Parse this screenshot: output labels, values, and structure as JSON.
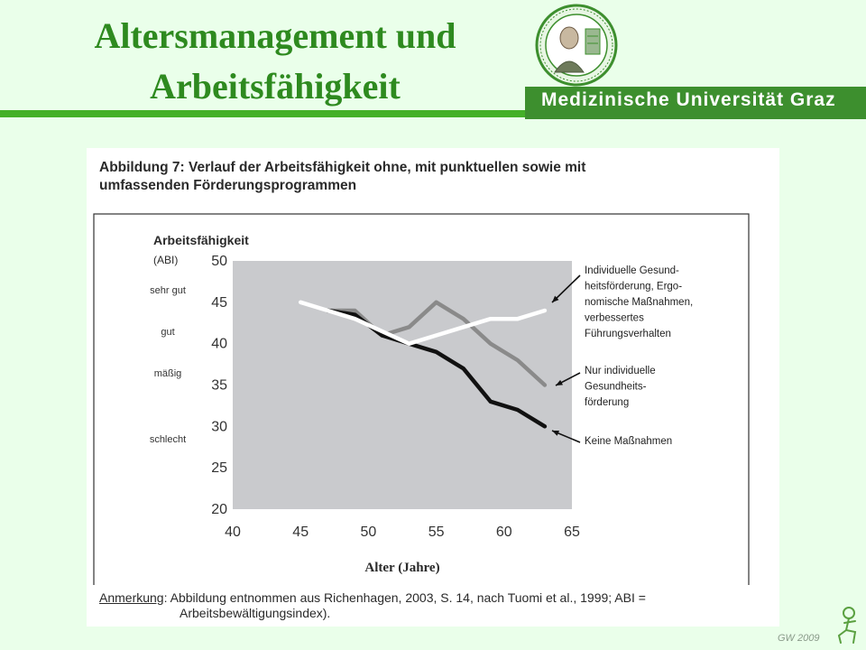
{
  "slide": {
    "title_line1": "Altersmanagement und",
    "title_line2": "Arbeitsfähigkeit",
    "university": "Medizinische Universität Graz",
    "author_footer": "GW 2009"
  },
  "figure": {
    "caption_line1": "Abbildung 7: Verlauf der Arbeitsfähigkeit ohne, mit punktuellen sowie mit",
    "caption_line2": "umfassenden Förderungsprogrammen",
    "note_key": "Anmerkung",
    "note_text1": ": Abbildung entnommen aus Richenhagen, 2003, S. 14, nach Tuomi et al., 1999; ABI =",
    "note_text2": "Arbeitsbewältigungsindex)."
  },
  "chart_data": {
    "type": "line",
    "ylabel": "Arbeitsfähigkeit",
    "ylabel_sub": "(ABI)",
    "xlabel": "Alter (Jahre)",
    "xlim": [
      40,
      65
    ],
    "ylim": [
      20,
      50
    ],
    "x_ticks": [
      40,
      45,
      50,
      55,
      60,
      65
    ],
    "y_ticks": [
      50,
      45,
      40,
      35,
      30,
      25,
      20
    ],
    "y_categories": [
      {
        "label": "sehr gut",
        "y": 46.5
      },
      {
        "label": "gut",
        "y": 41.5
      },
      {
        "label": "mäßig",
        "y": 36.5
      },
      {
        "label": "schlecht",
        "y": 28.5
      }
    ],
    "grid": false,
    "series": [
      {
        "legend_lines": [
          "Individuelle Gesund-",
          "heitsförderung, Ergo-",
          "nomische Maßnahmen,",
          "verbessertes",
          "Führungsverhalten"
        ],
        "color": "#ffffff",
        "x": [
          45,
          47,
          49,
          51,
          53,
          55,
          57,
          59,
          61,
          63
        ],
        "y": [
          45,
          44,
          43,
          41.5,
          40,
          41,
          42,
          43,
          43,
          44
        ]
      },
      {
        "legend_lines": [
          "Nur individuelle",
          "Gesundheits-",
          "förderung"
        ],
        "color": "#8a8a8a",
        "x": [
          47,
          49,
          51,
          53,
          55,
          57,
          59,
          61,
          63
        ],
        "y": [
          44,
          44,
          41,
          42,
          45,
          43,
          40,
          38,
          35
        ]
      },
      {
        "legend_lines": [
          "Keine Maßnahmen"
        ],
        "color": "#111111",
        "x": [
          47,
          49,
          51,
          53,
          55,
          57,
          59,
          61,
          63
        ],
        "y": [
          44,
          43.5,
          41,
          40,
          39,
          37,
          33,
          32,
          30
        ]
      }
    ]
  },
  "colors": {
    "title": "#2e8a1f",
    "accent_bar": "#44b028",
    "banner": "#3d8f2e",
    "background": "#eaffea",
    "plot_area": "#c9cacd"
  },
  "icons": {
    "seal": "university-seal-icon",
    "footer": "seated-figure-icon"
  }
}
